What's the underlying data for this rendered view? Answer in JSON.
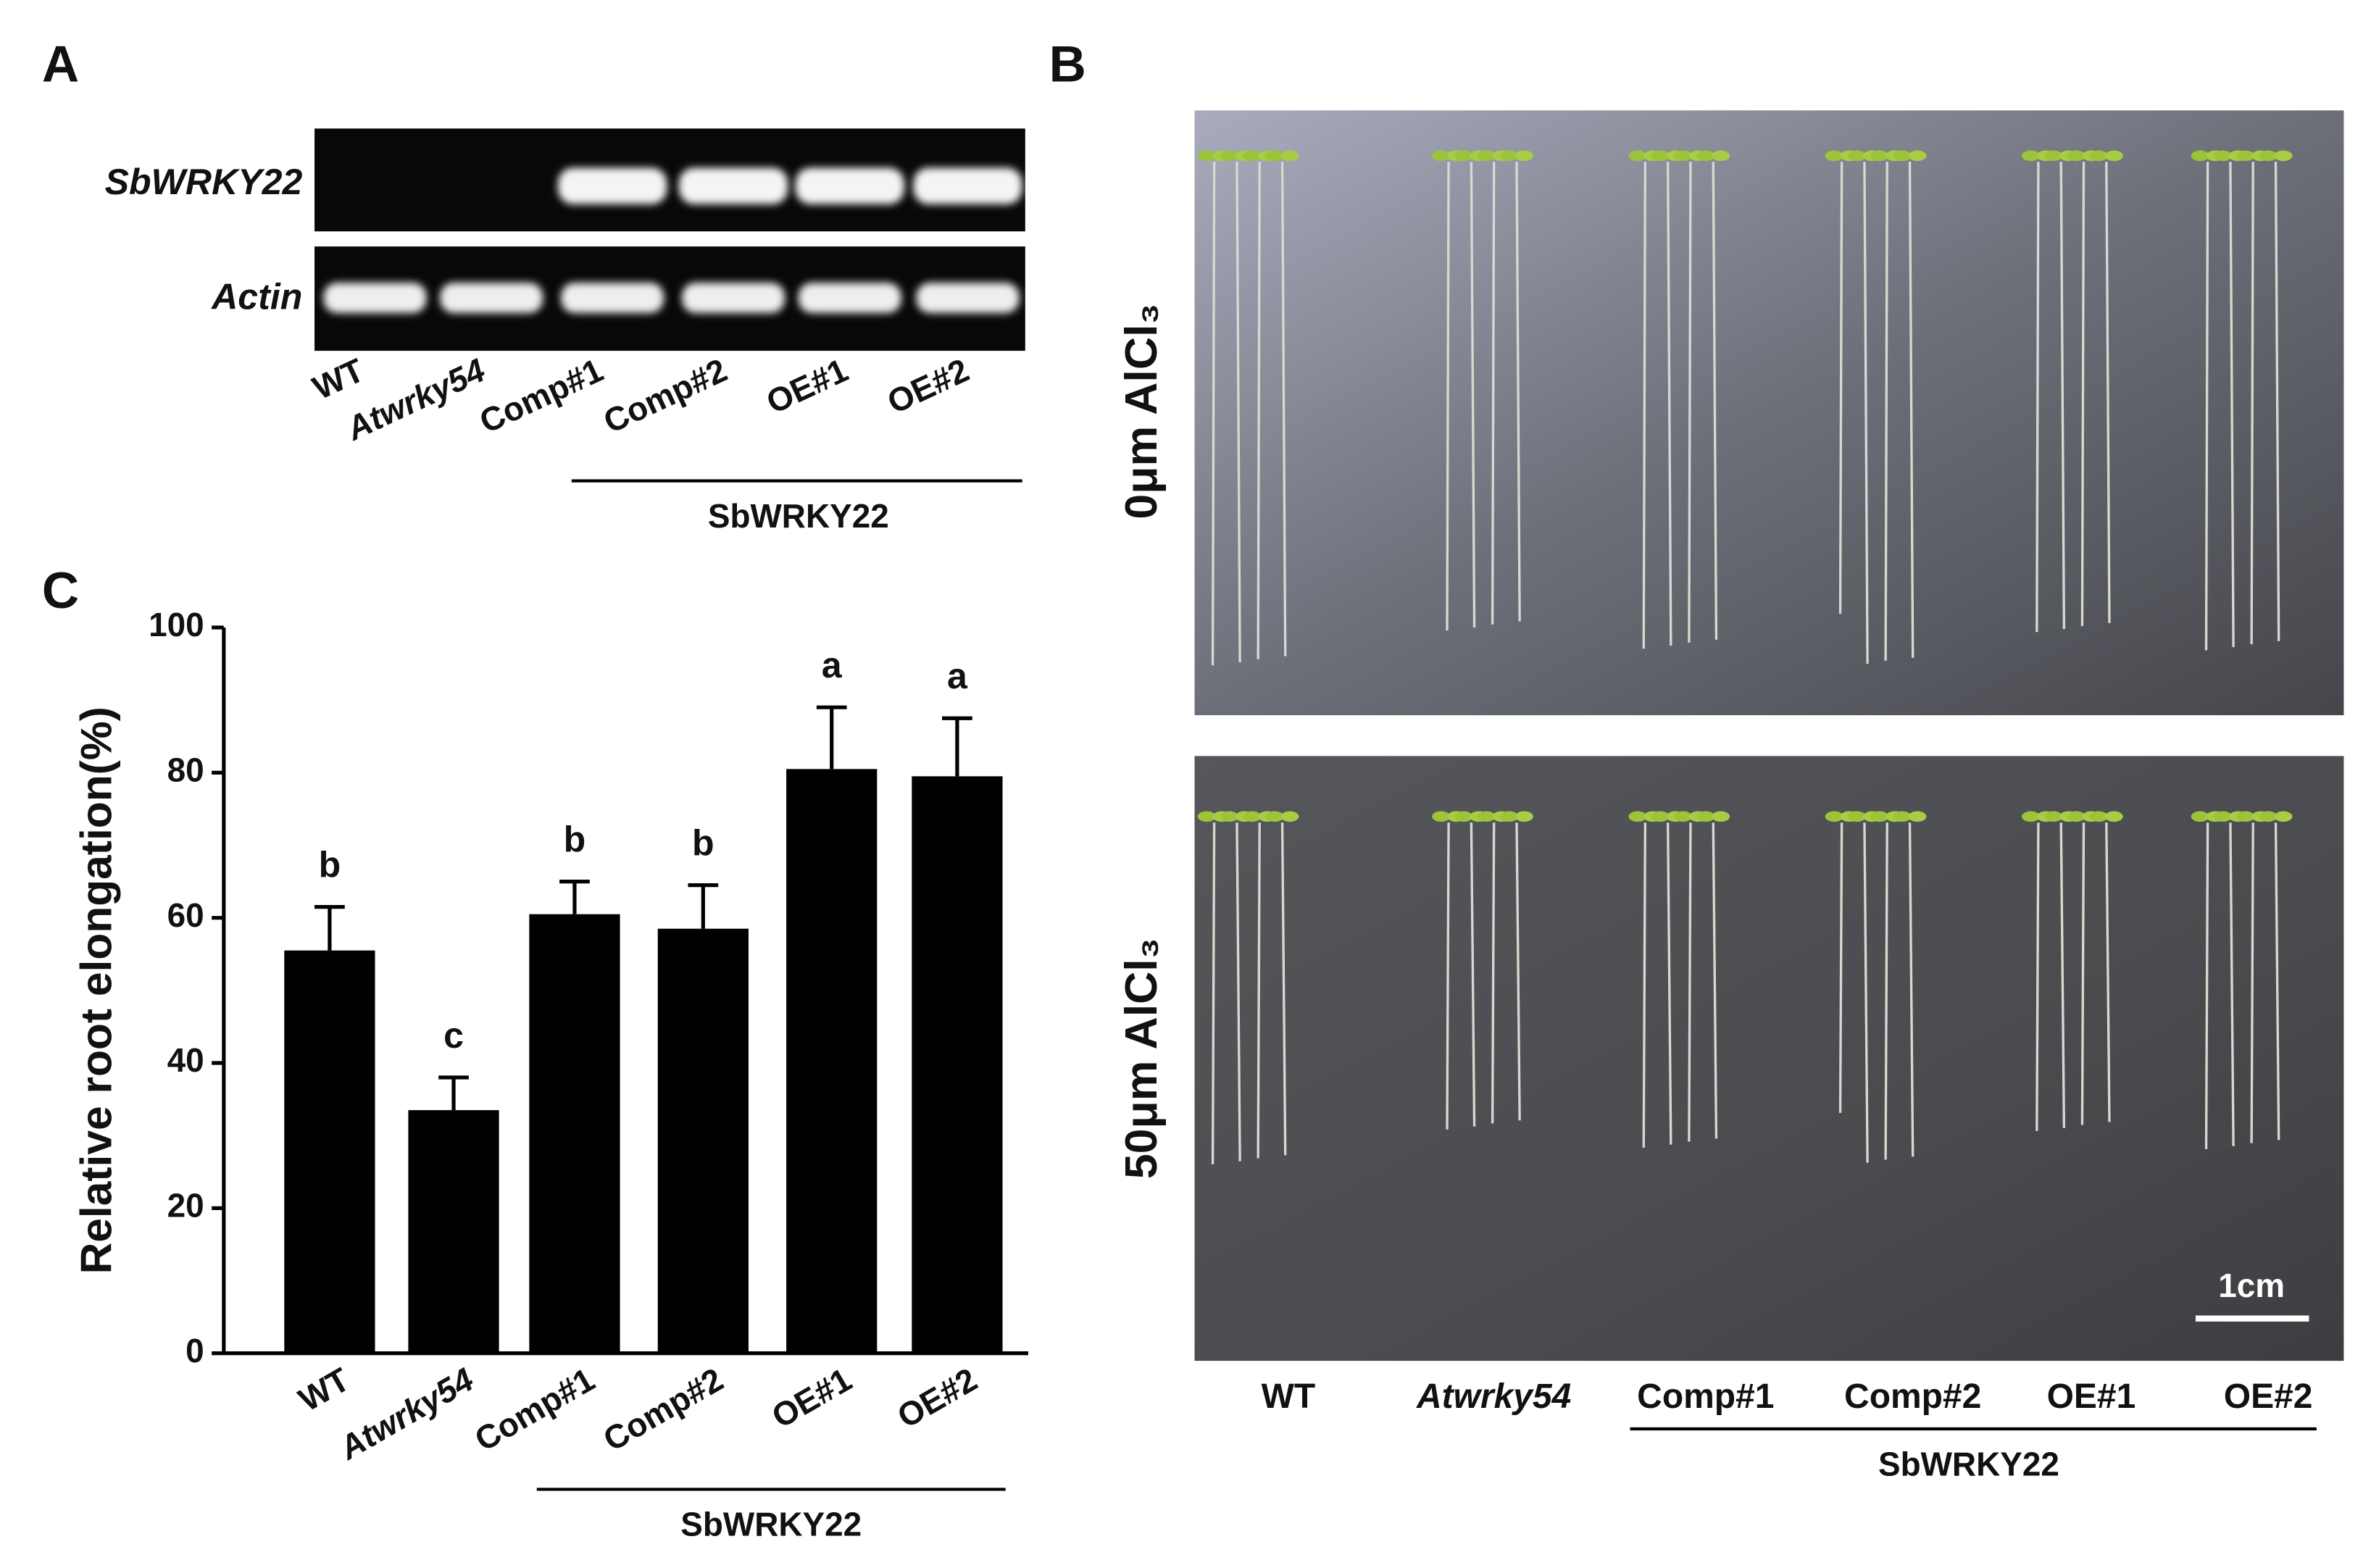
{
  "panel_a": {
    "letter": "A",
    "genes": [
      "SbWRKY22",
      "Actin"
    ],
    "lanes": [
      "WT",
      "Atwrky54",
      "Comp#1",
      "Comp#2",
      "OE#1",
      "OE#2"
    ],
    "group_label": "SbWRKY22"
  },
  "panel_b": {
    "letter": "B",
    "conditions": [
      "0μm AlCl₃",
      "50μm AlCl₃"
    ],
    "lanes": [
      "WT",
      "Atwrky54",
      "Comp#1",
      "Comp#2",
      "OE#1",
      "OE#2"
    ],
    "group_label": "SbWRKY22",
    "scale_bar": "1cm"
  },
  "chart_data": {
    "type": "bar",
    "letter": "C",
    "y_label": "Relative root elongation(%)",
    "categories": [
      "WT",
      "Atwrky54",
      "Comp#1",
      "Comp#2",
      "OE#1",
      "OE#2"
    ],
    "values": [
      55.5,
      33.5,
      60.5,
      58.5,
      80.5,
      79.5
    ],
    "errors": [
      6,
      4.5,
      4.5,
      6,
      8.5,
      8
    ],
    "annotations": [
      "b",
      "c",
      "b",
      "b",
      "a",
      "a"
    ],
    "group_label": "SbWRKY22",
    "color": "#000000",
    "ylim": [
      0,
      100
    ],
    "yticks": [
      0,
      20,
      40,
      60,
      80,
      100
    ]
  }
}
